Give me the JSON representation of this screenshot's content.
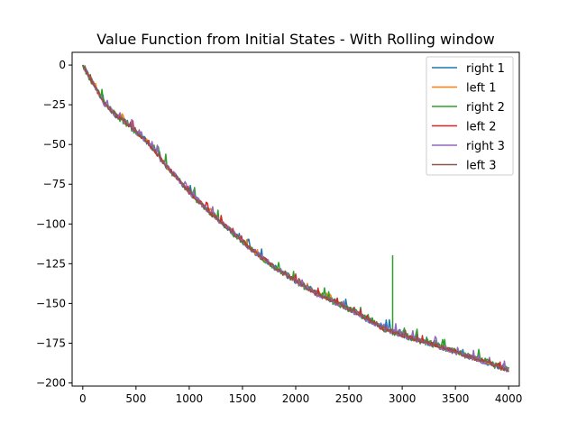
{
  "chart_data": {
    "type": "line",
    "title": "Value Function from Initial States - With Rolling window",
    "xlabel": "",
    "ylabel": "",
    "xlim": [
      -100,
      4100
    ],
    "ylim": [
      -202,
      8
    ],
    "xticks": [
      0,
      500,
      1000,
      1500,
      2000,
      2500,
      3000,
      3500,
      4000
    ],
    "yticks": [
      0,
      -25,
      -50,
      -75,
      -100,
      -125,
      -150,
      -175,
      -200
    ],
    "xtick_labels": [
      "0",
      "500",
      "1000",
      "1500",
      "2000",
      "2500",
      "3000",
      "3500",
      "4000"
    ],
    "ytick_labels": [
      "0",
      "−25",
      "−50",
      "−75",
      "−100",
      "−125",
      "−150",
      "−175",
      "−200"
    ],
    "grid": false,
    "legend_position": "top-right",
    "trend_x": [
      0,
      100,
      200,
      300,
      400,
      500,
      600,
      700,
      800,
      900,
      1000,
      1200,
      1400,
      1600,
      1800,
      2000,
      2200,
      2400,
      2600,
      2800,
      3000,
      3200,
      3400,
      3600,
      3800,
      4000
    ],
    "trend_y": [
      0,
      -12,
      -24,
      -31,
      -36,
      -42,
      -48,
      -56,
      -65,
      -72,
      -80,
      -93,
      -105,
      -117,
      -127,
      -136,
      -144,
      -150,
      -157,
      -165,
      -170,
      -174,
      -178,
      -183,
      -187,
      -192
    ],
    "spikes": [
      {
        "series": "right 2",
        "x": 2910,
        "y": -120
      }
    ],
    "series": [
      {
        "name": "right 1",
        "color": "#1f77b4",
        "noise": 2.5
      },
      {
        "name": "left 1",
        "color": "#ff7f0e",
        "noise": 1.5
      },
      {
        "name": "right 2",
        "color": "#2ca02c",
        "noise": 3.0
      },
      {
        "name": "left 2",
        "color": "#d62728",
        "noise": 2.0
      },
      {
        "name": "right 3",
        "color": "#9467bd",
        "noise": 2.5
      },
      {
        "name": "left 3",
        "color": "#8c564b",
        "noise": 1.5
      }
    ]
  }
}
